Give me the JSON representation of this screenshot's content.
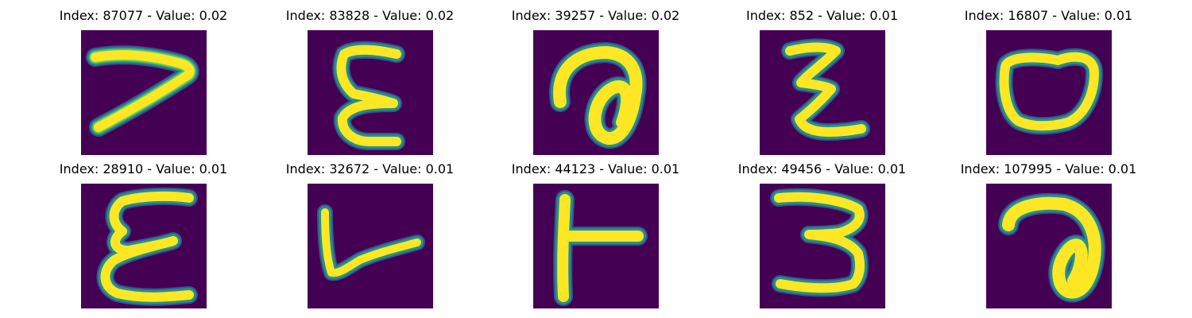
{
  "figure": {
    "background_color": "#ffffff",
    "colormap": "viridis",
    "colors": {
      "background": "#440154",
      "edge_low": "#3b528b",
      "edge_mid": "#21918c",
      "edge_high": "#5ec962",
      "stroke": "#fde725"
    },
    "panels": [
      {
        "title": "Index: 87077 - Value: 0.02",
        "glyph": "seven-like-stroke"
      },
      {
        "title": "Index: 83828 - Value: 0.02",
        "glyph": "epsilon-like-stroke"
      },
      {
        "title": "Index: 39257 - Value: 0.02",
        "glyph": "curl-loop-stroke"
      },
      {
        "title": "Index: 852 - Value: 0.01",
        "glyph": "zigzag-z-stroke"
      },
      {
        "title": "Index: 16807 - Value: 0.01",
        "glyph": "oval-loop-stroke"
      },
      {
        "title": "Index: 28910 - Value: 0.01",
        "glyph": "wavy-epsilon-stroke"
      },
      {
        "title": "Index: 32672 - Value: 0.01",
        "glyph": "check-like-stroke"
      },
      {
        "title": "Index: 44123 - Value: 0.01",
        "glyph": "t-shape-stroke"
      },
      {
        "title": "Index: 49456 - Value: 0.01",
        "glyph": "three-like-stroke"
      },
      {
        "title": "Index: 107995 - Value: 0.01",
        "glyph": "curl-loop-stroke-2"
      }
    ]
  }
}
